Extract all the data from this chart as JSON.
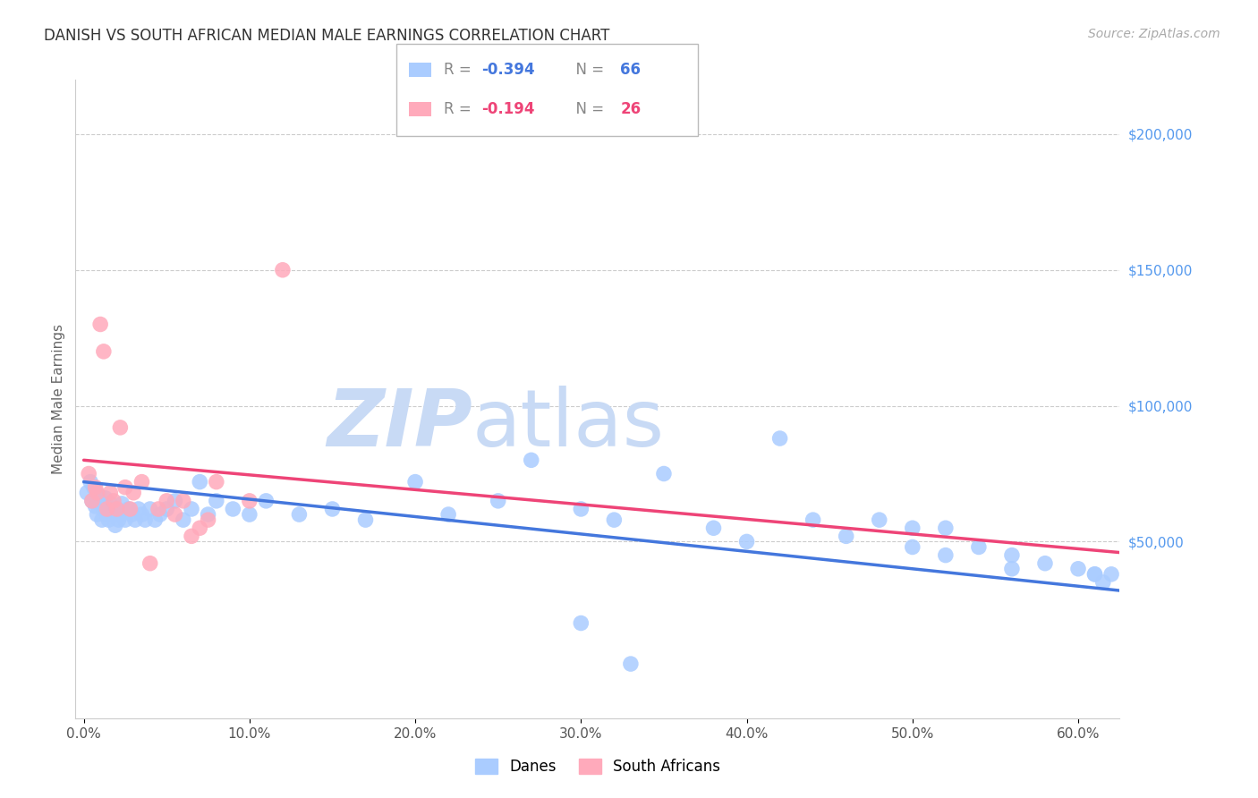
{
  "title": "DANISH VS SOUTH AFRICAN MEDIAN MALE EARNINGS CORRELATION CHART",
  "source": "Source: ZipAtlas.com",
  "ylabel": "Median Male Earnings",
  "background_color": "#ffffff",
  "title_color": "#333333",
  "source_color": "#aaaaaa",
  "ylabel_color": "#666666",
  "right_ytick_color": "#5599ee",
  "yticks_right": [
    50000,
    100000,
    150000,
    200000
  ],
  "ytick_labels_right": [
    "$50,000",
    "$100,000",
    "$150,000",
    "$200,000"
  ],
  "xlim": [
    -0.005,
    0.625
  ],
  "ylim": [
    -15000,
    220000
  ],
  "xticks": [
    0.0,
    0.1,
    0.2,
    0.3,
    0.4,
    0.5,
    0.6
  ],
  "xtick_labels": [
    "0.0%",
    "10.0%",
    "20.0%",
    "30.0%",
    "40.0%",
    "50.0%",
    "60.0%"
  ],
  "grid_color": "#cccccc",
  "dane_color": "#aaccff",
  "sa_color": "#ffaabb",
  "dane_line_color": "#4477dd",
  "sa_line_color": "#ee4477",
  "legend_r_dane": "-0.394",
  "legend_n_dane": "66",
  "legend_r_sa": "-0.194",
  "legend_n_sa": "26",
  "dane_scatter_x": [
    0.002,
    0.004,
    0.005,
    0.006,
    0.007,
    0.008,
    0.009,
    0.01,
    0.011,
    0.012,
    0.013,
    0.014,
    0.015,
    0.016,
    0.017,
    0.018,
    0.019,
    0.02,
    0.021,
    0.022,
    0.023,
    0.025,
    0.027,
    0.029,
    0.031,
    0.033,
    0.035,
    0.037,
    0.04,
    0.043,
    0.046,
    0.05,
    0.055,
    0.06,
    0.065,
    0.07,
    0.075,
    0.08,
    0.09,
    0.1,
    0.11,
    0.13,
    0.15,
    0.17,
    0.2,
    0.22,
    0.25,
    0.27,
    0.3,
    0.32,
    0.35,
    0.38,
    0.4,
    0.42,
    0.44,
    0.46,
    0.48,
    0.5,
    0.52,
    0.54,
    0.56,
    0.58,
    0.6,
    0.61,
    0.62,
    0.615
  ],
  "dane_scatter_y": [
    68000,
    72000,
    65000,
    70000,
    63000,
    60000,
    67000,
    64000,
    58000,
    62000,
    66000,
    60000,
    58000,
    64000,
    62000,
    60000,
    56000,
    62000,
    58000,
    60000,
    64000,
    58000,
    62000,
    60000,
    58000,
    62000,
    60000,
    58000,
    62000,
    58000,
    60000,
    62000,
    65000,
    58000,
    62000,
    72000,
    60000,
    65000,
    62000,
    60000,
    65000,
    60000,
    62000,
    58000,
    72000,
    60000,
    65000,
    80000,
    62000,
    58000,
    75000,
    55000,
    50000,
    88000,
    58000,
    52000,
    58000,
    48000,
    55000,
    48000,
    45000,
    42000,
    40000,
    38000,
    38000,
    35000
  ],
  "dane_scatter_y_outliers": [
    20000,
    5000,
    55000,
    45000,
    40000,
    38000
  ],
  "dane_scatter_x_outliers": [
    0.3,
    0.33,
    0.5,
    0.52,
    0.56,
    0.61
  ],
  "sa_scatter_x": [
    0.003,
    0.005,
    0.007,
    0.008,
    0.01,
    0.012,
    0.014,
    0.016,
    0.018,
    0.02,
    0.022,
    0.025,
    0.028,
    0.03,
    0.035,
    0.04,
    0.045,
    0.05,
    0.055,
    0.06,
    0.065,
    0.07,
    0.075,
    0.08,
    0.1,
    0.12
  ],
  "sa_scatter_y": [
    75000,
    65000,
    70000,
    68000,
    130000,
    120000,
    62000,
    68000,
    65000,
    62000,
    92000,
    70000,
    62000,
    68000,
    72000,
    42000,
    62000,
    65000,
    60000,
    65000,
    52000,
    55000,
    58000,
    72000,
    65000,
    150000
  ],
  "dane_trend": [
    0.0,
    0.625,
    72000,
    32000
  ],
  "sa_trend": [
    0.0,
    0.625,
    80000,
    46000
  ],
  "watermark_zip": "ZIP",
  "watermark_atlas": "atlas",
  "watermark_color_zip": "#c8daf5",
  "watermark_color_atlas": "#c8daf5",
  "scatter_size": 160
}
